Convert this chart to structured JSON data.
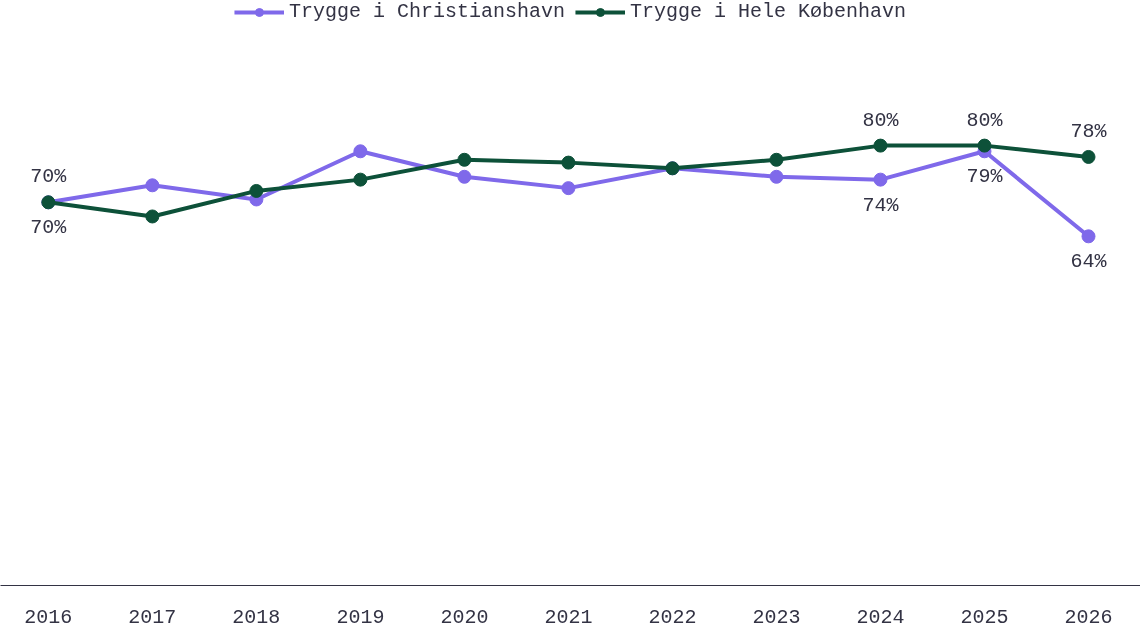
{
  "chart_data": {
    "type": "line",
    "categories": [
      "2016",
      "2017",
      "2018",
      "2019",
      "2020",
      "2021",
      "2022",
      "2023",
      "2024",
      "2025",
      "2026"
    ],
    "series": [
      {
        "name": "Trygge i Christianshavn",
        "color": "#7f69ea",
        "values": [
          70,
          73,
          70.5,
          79,
          74.5,
          72.5,
          76,
          74.5,
          74,
          79,
          64
        ],
        "value_labels": [
          "70%",
          null,
          null,
          null,
          null,
          null,
          null,
          null,
          "74%",
          "79%",
          "64%"
        ]
      },
      {
        "name": "Trygge i Hele København",
        "color": "#0d5139",
        "values": [
          70,
          67.5,
          72,
          74,
          77.5,
          77,
          76,
          77.5,
          80,
          80,
          78
        ],
        "value_labels": [
          "70%",
          null,
          null,
          null,
          null,
          null,
          null,
          null,
          "80%",
          "80%",
          "78%"
        ]
      }
    ],
    "marker": "circle",
    "line_style": "solid",
    "legend": "top",
    "grid": false,
    "tick_labels": "x"
  }
}
